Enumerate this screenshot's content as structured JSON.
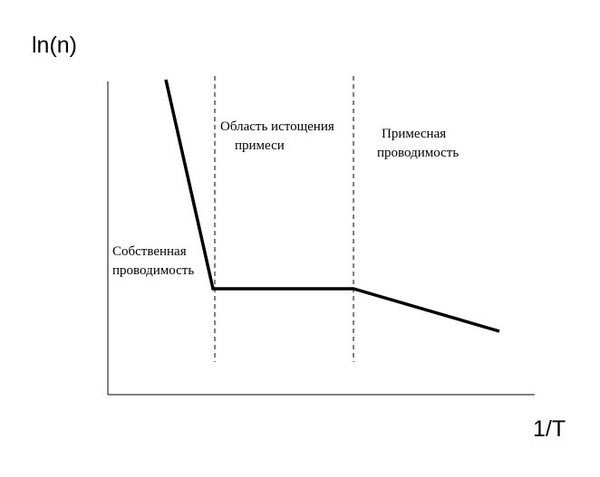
{
  "axes": {
    "y_label": "ln(n)",
    "x_label": "1/T"
  },
  "regions": {
    "intrinsic": {
      "line1": "Собственная",
      "line2": "проводимость"
    },
    "depletion": {
      "line1": "Область истощения",
      "line2": "примеси"
    },
    "impurity": {
      "line1": "Примесная",
      "line2": "проводимость"
    }
  },
  "colors": {
    "curve": "#000000",
    "axes": "#000000",
    "dashed": "#000000"
  }
}
